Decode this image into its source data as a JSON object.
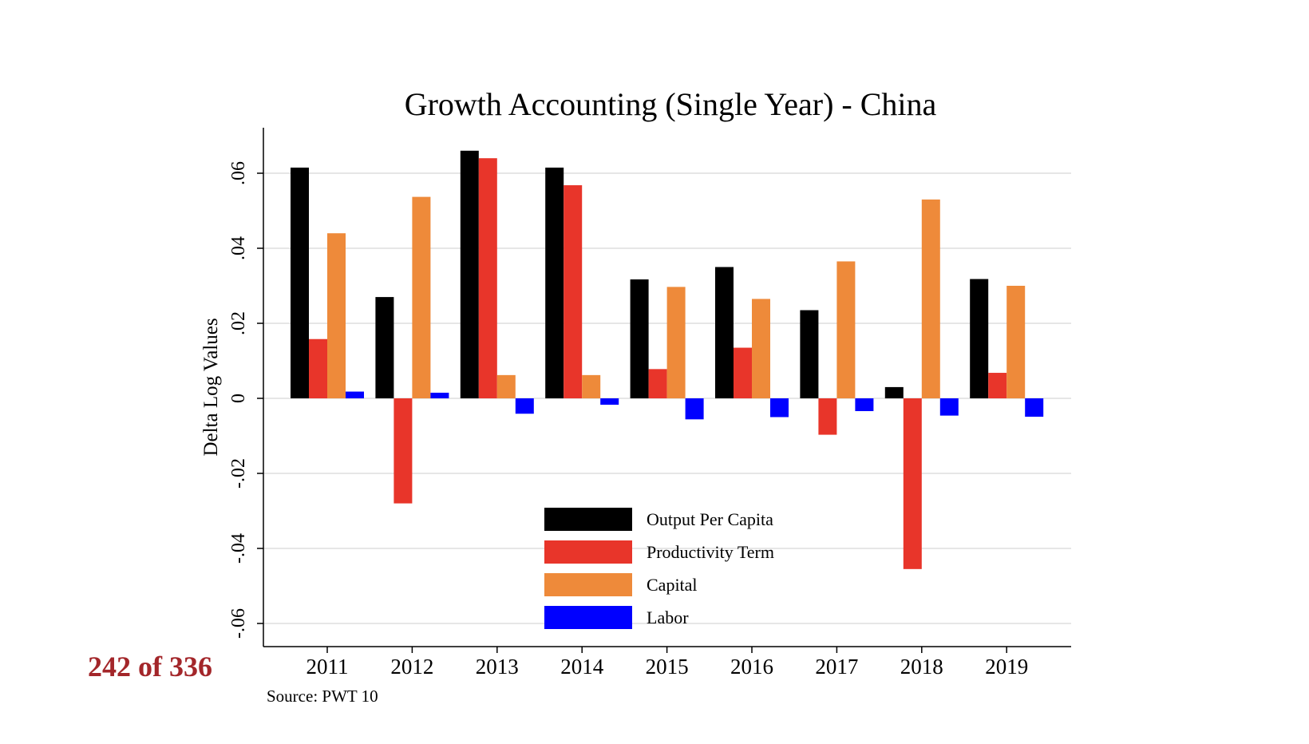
{
  "slide": {
    "counter": "242 of 336",
    "source": "Source: PWT 10"
  },
  "chart_data": {
    "type": "bar",
    "title": "Growth Accounting (Single Year) - China",
    "xlabel": "",
    "ylabel": "Delta Log Values",
    "categories": [
      "2011",
      "2012",
      "2013",
      "2014",
      "2015",
      "2016",
      "2017",
      "2018",
      "2019"
    ],
    "ylim": [
      -0.064,
      0.072
    ],
    "yticks": [
      {
        "value": -0.06,
        "label": "-.06"
      },
      {
        "value": -0.04,
        "label": "-.04"
      },
      {
        "value": -0.02,
        "label": "-.02"
      },
      {
        "value": 0,
        "label": "0"
      },
      {
        "value": 0.02,
        "label": ".02"
      },
      {
        "value": 0.04,
        "label": ".04"
      },
      {
        "value": 0.06,
        "label": ".06"
      }
    ],
    "grid": true,
    "legend_position": "inside-bottom-center",
    "series": [
      {
        "name": "Output Per Capita",
        "color": "#000000",
        "values": [
          0.0615,
          0.027,
          0.066,
          0.0615,
          0.0317,
          0.035,
          0.0235,
          0.003,
          0.0318
        ]
      },
      {
        "name": "Productivity Term",
        "color": "#e8352a",
        "values": [
          0.0158,
          -0.028,
          0.064,
          0.0568,
          0.0078,
          0.0135,
          -0.0097,
          -0.0455,
          0.0068
        ]
      },
      {
        "name": "Capital",
        "color": "#ee8a3a",
        "values": [
          0.044,
          0.0537,
          0.0062,
          0.0062,
          0.0297,
          0.0265,
          0.0365,
          0.053,
          0.03
        ]
      },
      {
        "name": "Labor",
        "color": "#0000ff",
        "values": [
          0.0018,
          0.0015,
          -0.0041,
          -0.0017,
          -0.0056,
          -0.005,
          -0.0034,
          -0.0046,
          -0.0049
        ]
      }
    ]
  }
}
